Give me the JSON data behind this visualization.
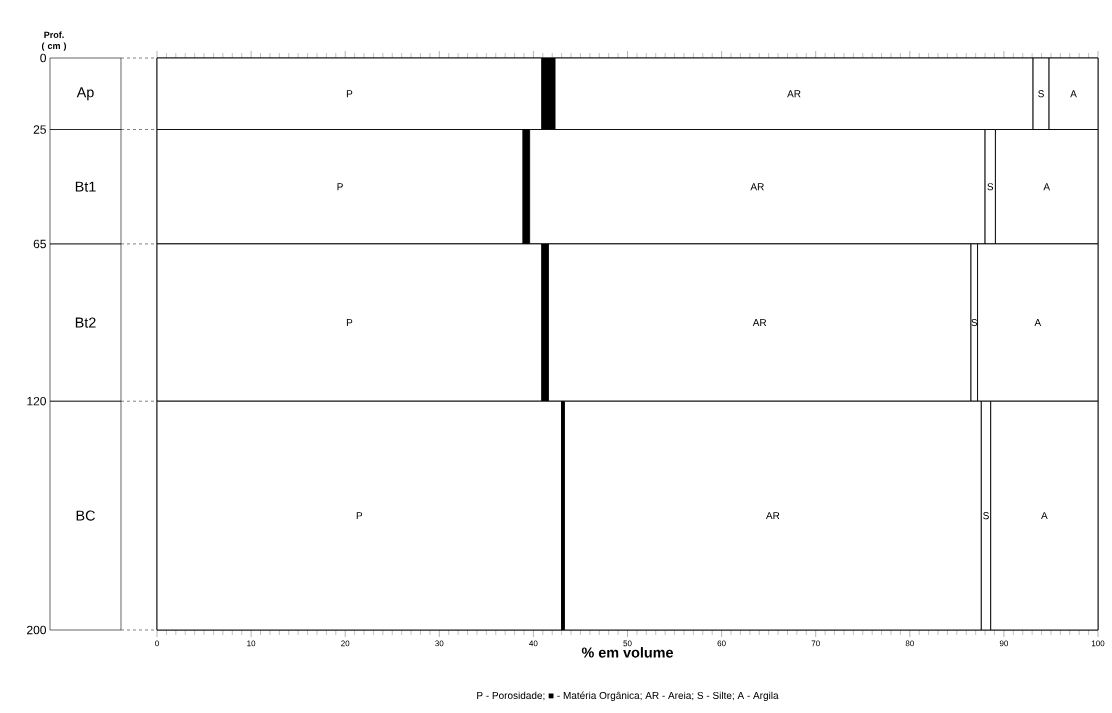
{
  "chart_data": {
    "type": "bar",
    "orientation": "horizontal",
    "stacked": true,
    "x": [
      12.5,
      45,
      92.5,
      160
    ],
    "series": [
      {
        "name": "P",
        "color": "#ffffff",
        "values": [
          40.9,
          38.9,
          40.9,
          43.0
        ]
      },
      {
        "color": "#000000",
        "values": [
          1.4,
          0.7,
          0.7,
          0.3
        ]
      },
      {
        "name": "AR",
        "color": "#ffffff",
        "values": [
          50.8,
          48.4,
          44.9,
          44.3
        ]
      },
      {
        "name": "S",
        "color": "#ffffff",
        "values": [
          1.7,
          1.1,
          0.7,
          1.0
        ]
      },
      {
        "name": "A",
        "color": "#ffffff",
        "values": [
          5.2,
          10.9,
          12.8,
          11.4
        ]
      }
    ],
    "xlim": [
      0,
      100
    ],
    "xticks": [
      0,
      10,
      20,
      30,
      40,
      50,
      60,
      70,
      80,
      90,
      100
    ],
    "ylim": [
      200,
      0
    ],
    "yticks": [
      0,
      25,
      65,
      120,
      200
    ],
    "xlabel": "% em volume",
    "ylabel": "Prof. ( cm )",
    "annotations": [
      "Ap",
      "Bt1",
      "Bt2",
      "BC",
      "P - Porosidade; ■ - Matéria Orgânica; AR - Areia; S - Silte; A - Argila"
    ]
  }
}
